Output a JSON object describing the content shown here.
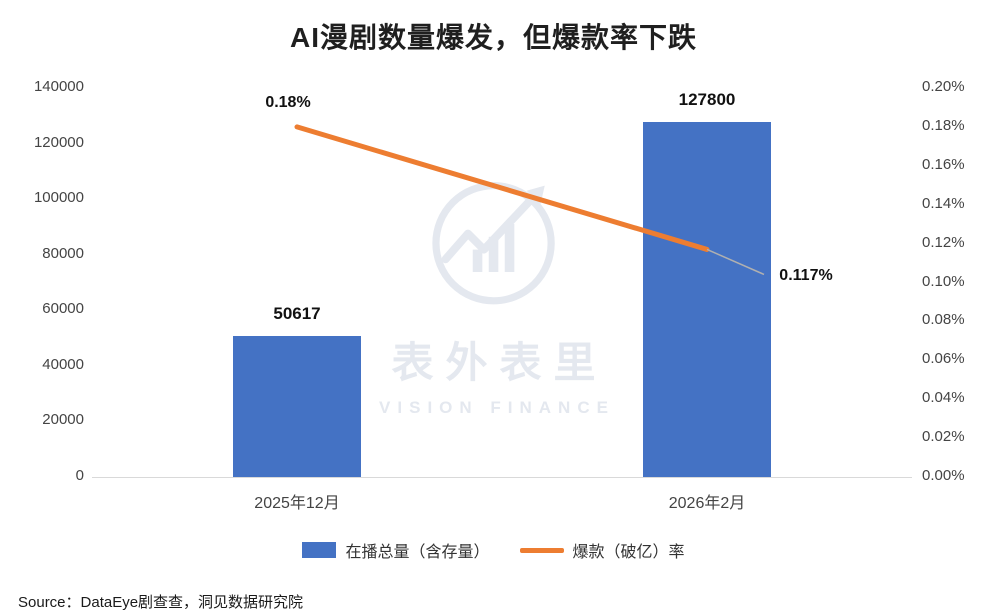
{
  "title": "AI漫剧数量爆发，但爆款率下跌",
  "source": "Source：DataEye剧查查，洞见数据研究院",
  "watermark": {
    "cn": "表外表里",
    "en": "VISION FINANCE",
    "color": "#e4e8ef"
  },
  "legend": [
    {
      "label": "在播总量（含存量）",
      "type": "bar",
      "color": "#4472C4"
    },
    {
      "label": "爆款（破亿）率",
      "type": "line",
      "color": "#ED7D31"
    }
  ],
  "chart_data": {
    "type": "bar",
    "categories": [
      "2025年12月",
      "2026年2月"
    ],
    "series": [
      {
        "name": "在播总量（含存量）",
        "type": "bar",
        "values": [
          50617,
          127800
        ],
        "labels": [
          "50617",
          "127800"
        ],
        "color": "#4472C4",
        "axis": "left"
      },
      {
        "name": "爆款（破亿）率",
        "type": "line",
        "values": [
          0.18,
          0.117
        ],
        "labels": [
          "0.18%",
          "0.117%"
        ],
        "color": "#ED7D31",
        "axis": "right"
      }
    ],
    "left_axis": {
      "min": 0,
      "max": 140000,
      "step": 20000,
      "ticks": [
        "0",
        "20000",
        "40000",
        "60000",
        "80000",
        "100000",
        "120000",
        "140000"
      ]
    },
    "right_axis": {
      "min": 0,
      "max": 0.2,
      "step": 0.02,
      "ticks": [
        "0.00%",
        "0.02%",
        "0.04%",
        "0.06%",
        "0.08%",
        "0.10%",
        "0.12%",
        "0.14%",
        "0.16%",
        "0.18%",
        "0.20%"
      ]
    },
    "grid": false,
    "legend_position": "bottom"
  }
}
